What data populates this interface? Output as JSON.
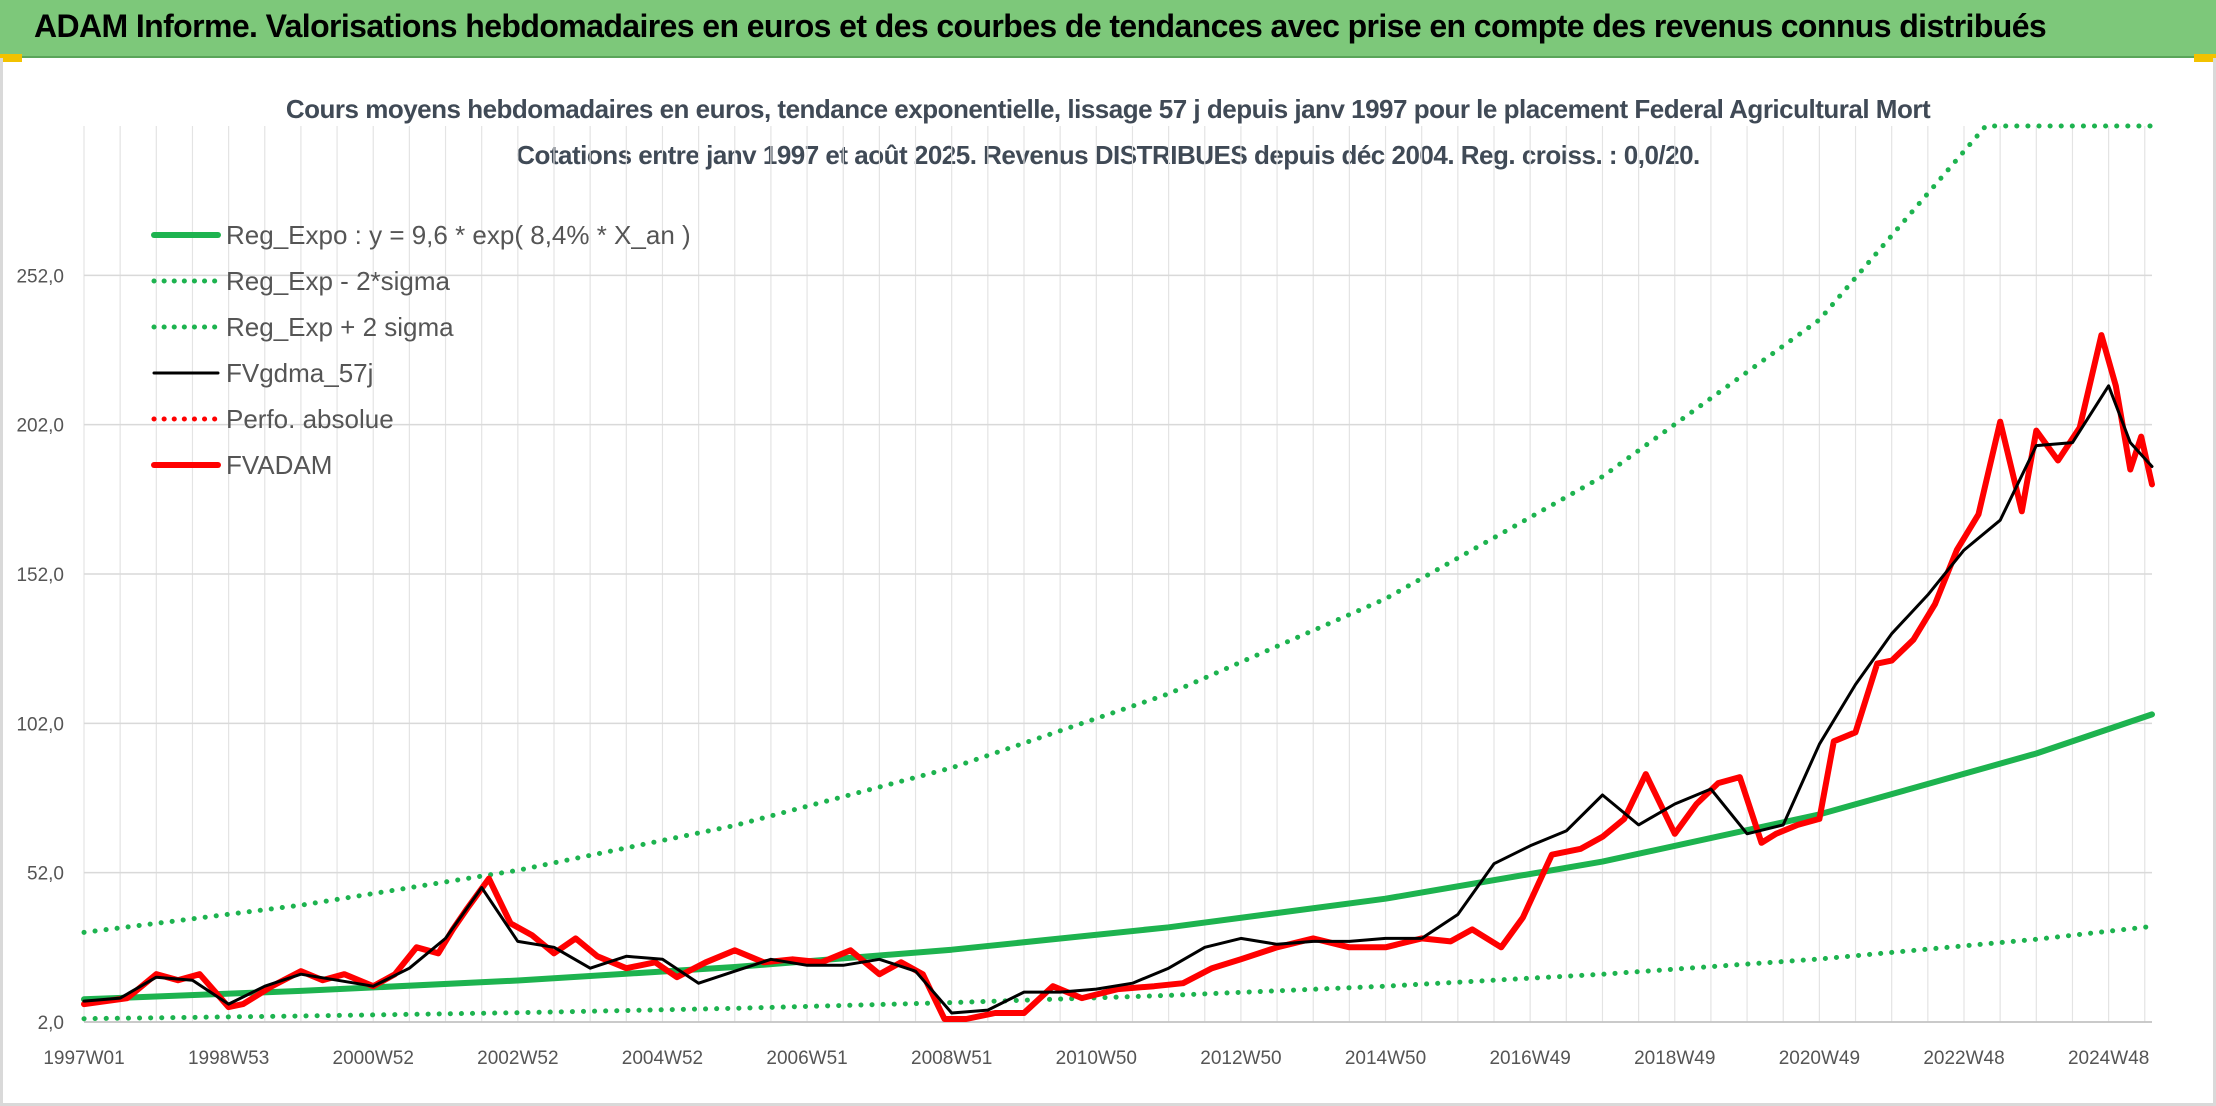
{
  "header": {
    "title": "ADAM Informe. Valorisations hebdomadaires en euros et des courbes de tendances avec prise en compte des revenus connus distribués"
  },
  "chart_data": {
    "type": "line",
    "title": "Cours moyens hebdomadaires en euros, tendance exponentielle, lissage 57 j depuis janv 1997 pour le placement Federal Agricultural Mort",
    "subtitle": "Cotations entre janv 1997 et août 2025. Revenus DISTRIBUES depuis déc 2004. Reg. croiss. : 0,0/20.",
    "x_range": [
      1997.0,
      2025.6
    ],
    "ylim": [
      2.0,
      302.0
    ],
    "y_ticks": [
      "2,0",
      "52,0",
      "102,0",
      "152,0",
      "202,0",
      "252,0"
    ],
    "x_tick_labels": [
      "1997W01",
      "1998W53",
      "2000W52",
      "2002W52",
      "2004W52",
      "2006W51",
      "2008W51",
      "2010W50",
      "2012W50",
      "2014W50",
      "2016W49",
      "2018W49",
      "2020W49",
      "2022W48",
      "2024W48"
    ],
    "grid": true,
    "legend_position": "top-left",
    "series": [
      {
        "name": "Reg_Expo : y = 9,6 * exp( 8,4% *  X_an )",
        "color": "#1db34f",
        "style": "solid-thick",
        "x": [
          1997,
          2000,
          2003,
          2006,
          2009,
          2012,
          2015,
          2018,
          2021,
          2024,
          2025.6
        ],
        "values": [
          9.6,
          12.4,
          15.9,
          20.4,
          26.2,
          33.7,
          43.3,
          55.7,
          71.5,
          91.9,
          105.0
        ]
      },
      {
        "name": "Reg_Exp - 2*sigma",
        "color": "#1db34f",
        "style": "dotted",
        "x": [
          1997,
          2000,
          2003,
          2006,
          2009,
          2012,
          2015,
          2018,
          2021,
          2024,
          2025.6
        ],
        "values": [
          3.1,
          4.0,
          5.1,
          6.6,
          8.5,
          10.9,
          14.0,
          18.0,
          23.1,
          29.7,
          34.0
        ]
      },
      {
        "name": "Reg_Exp + 2 sigma",
        "color": "#1db34f",
        "style": "dotted",
        "x": [
          1997,
          2000,
          2003,
          2006,
          2009,
          2012,
          2015,
          2018,
          2021,
          2023.3,
          2025.6
        ],
        "values": [
          32.0,
          41.1,
          52.8,
          67.8,
          87.1,
          111.9,
          143.7,
          184.6,
          237.1,
          302.0,
          302.0
        ]
      },
      {
        "name": "FVgdma_57j",
        "color": "#000000",
        "style": "solid",
        "x": [
          1997.0,
          1997.5,
          1998.0,
          1998.5,
          1999.0,
          1999.5,
          2000.0,
          2000.5,
          2001.0,
          2001.5,
          2002.0,
          2002.5,
          2003.0,
          2003.5,
          2004.0,
          2004.5,
          2005.0,
          2005.5,
          2006.0,
          2006.5,
          2007.0,
          2007.5,
          2008.0,
          2008.5,
          2009.0,
          2009.5,
          2010.0,
          2010.5,
          2011.0,
          2011.5,
          2012.0,
          2012.5,
          2013.0,
          2013.5,
          2014.0,
          2014.5,
          2015.0,
          2015.5,
          2016.0,
          2016.5,
          2017.0,
          2017.5,
          2018.0,
          2018.5,
          2019.0,
          2019.5,
          2020.0,
          2020.5,
          2021.0,
          2021.5,
          2022.0,
          2022.5,
          2023.0,
          2023.5,
          2024.0,
          2024.5,
          2025.0,
          2025.3,
          2025.6
        ],
        "values": [
          9,
          10,
          17,
          16,
          8,
          14,
          18,
          16,
          14,
          20,
          30,
          47,
          29,
          27,
          20,
          24,
          23,
          15,
          19,
          23,
          21,
          21,
          23,
          19,
          5,
          6,
          12,
          12,
          13,
          15,
          20,
          27,
          30,
          28,
          29,
          29,
          30,
          30,
          38,
          55,
          61,
          66,
          78,
          68,
          75,
          80,
          65,
          68,
          95,
          115,
          132,
          145,
          160,
          170,
          195,
          196,
          215,
          196,
          188
        ]
      },
      {
        "name": "Perfo. absolue",
        "color": "#ff0000",
        "style": "dotted",
        "x": [],
        "values": []
      },
      {
        "name": "FVADAM",
        "color": "#ff0000",
        "style": "solid-thick",
        "x": [
          1997.0,
          1997.3,
          1997.6,
          1998.0,
          1998.3,
          1998.6,
          1999.0,
          1999.2,
          1999.6,
          2000.0,
          2000.3,
          2000.6,
          2001.0,
          2001.3,
          2001.6,
          2001.9,
          2002.1,
          2002.3,
          2002.6,
          2002.9,
          2003.2,
          2003.5,
          2003.8,
          2004.1,
          2004.5,
          2004.9,
          2005.2,
          2005.6,
          2006.0,
          2006.4,
          2006.8,
          2007.2,
          2007.6,
          2008.0,
          2008.3,
          2008.6,
          2008.9,
          2009.2,
          2009.6,
          2010.0,
          2010.4,
          2010.8,
          2011.3,
          2011.8,
          2012.2,
          2012.6,
          2013.0,
          2013.5,
          2014.0,
          2014.5,
          2015.0,
          2015.5,
          2015.9,
          2016.2,
          2016.6,
          2016.9,
          2017.3,
          2017.7,
          2018.0,
          2018.3,
          2018.6,
          2019.0,
          2019.3,
          2019.6,
          2019.9,
          2020.2,
          2020.4,
          2020.7,
          2021.0,
          2021.2,
          2021.5,
          2021.8,
          2022.0,
          2022.3,
          2022.6,
          2022.9,
          2023.2,
          2023.5,
          2023.8,
          2024.0,
          2024.3,
          2024.6,
          2024.9,
          2025.1,
          2025.3,
          2025.45,
          2025.6
        ],
        "values": [
          8,
          9,
          10,
          18,
          16,
          18,
          7,
          8,
          14,
          19,
          16,
          18,
          14,
          18,
          27,
          25,
          33,
          40,
          50,
          35,
          31,
          25,
          30,
          24,
          20,
          22,
          17,
          22,
          26,
          22,
          23,
          22,
          26,
          18,
          22,
          18,
          3,
          3,
          5,
          5,
          14,
          10,
          13,
          14,
          15,
          20,
          23,
          27,
          30,
          27,
          27,
          30,
          29,
          33,
          27,
          37,
          58,
          60,
          64,
          70,
          85,
          65,
          75,
          82,
          84,
          62,
          65,
          68,
          70,
          96,
          99,
          122,
          123,
          130,
          142,
          160,
          172,
          203,
          173,
          200,
          190,
          201,
          232,
          215,
          187,
          198,
          182
        ]
      }
    ]
  }
}
